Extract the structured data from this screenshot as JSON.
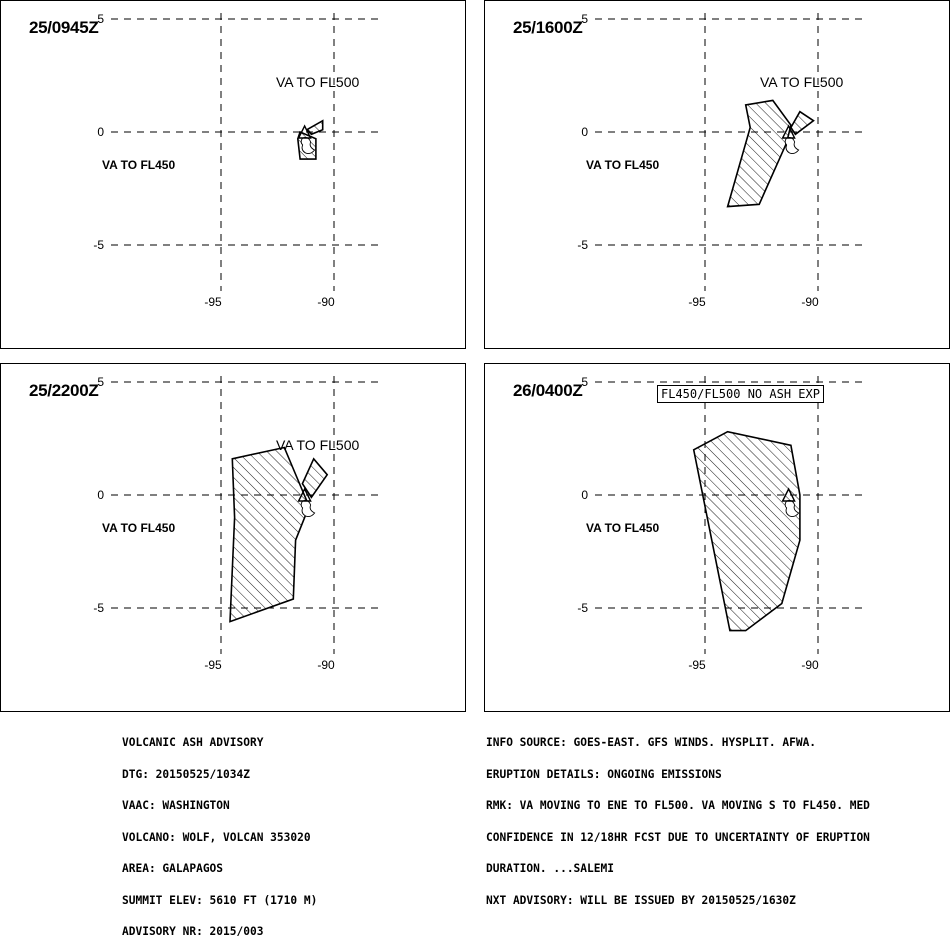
{
  "panels": [
    {
      "time": "25/0945Z",
      "labels": {
        "upper": "VA TO FL500",
        "lower": "VA TO FL450"
      },
      "ticks": {
        "y_top": "5",
        "y_mid": "0",
        "y_bot": "-5",
        "x_left": "-95",
        "x_right": "-90"
      },
      "polygons": {
        "lower": [
          [
            -91.5,
            0.0
          ],
          [
            -90.8,
            -0.3
          ],
          [
            -90.8,
            -1.2
          ],
          [
            -91.5,
            -1.2
          ],
          [
            -91.6,
            -0.3
          ]
        ],
        "upper": [
          [
            -91.2,
            0.1
          ],
          [
            -90.5,
            0.5
          ],
          [
            -90.5,
            0.1
          ],
          [
            -91.0,
            -0.1
          ]
        ]
      }
    },
    {
      "time": "25/1600Z",
      "labels": {
        "upper": "VA TO FL500",
        "lower": "VA TO FL450"
      },
      "ticks": {
        "y_top": "5",
        "y_mid": "0",
        "y_bot": "-5",
        "x_left": "-95",
        "x_right": "-90"
      },
      "polygons": {
        "lower": [
          [
            -93.2,
            1.2
          ],
          [
            -92.0,
            1.4
          ],
          [
            -91.2,
            0.3
          ],
          [
            -91.4,
            -0.5
          ],
          [
            -92.6,
            -3.2
          ],
          [
            -94.0,
            -3.3
          ],
          [
            -93.0,
            0.2
          ]
        ],
        "upper": [
          [
            -91.2,
            0.2
          ],
          [
            -90.8,
            0.9
          ],
          [
            -90.2,
            0.5
          ],
          [
            -91.0,
            -0.1
          ]
        ]
      }
    },
    {
      "time": "25/2200Z",
      "labels": {
        "upper": "VA TO FL500",
        "lower": "VA TO FL450"
      },
      "ticks": {
        "y_top": "5",
        "y_mid": "0",
        "y_bot": "-5",
        "x_left": "-95",
        "x_right": "-90"
      },
      "polygons": {
        "lower": [
          [
            -94.5,
            1.6
          ],
          [
            -92.2,
            2.1
          ],
          [
            -91.4,
            0.2
          ],
          [
            -91.1,
            -0.5
          ],
          [
            -91.7,
            -2.0
          ],
          [
            -91.8,
            -4.6
          ],
          [
            -94.6,
            -5.6
          ],
          [
            -94.4,
            -1.0
          ]
        ],
        "upper": [
          [
            -91.4,
            0.5
          ],
          [
            -90.9,
            1.6
          ],
          [
            -90.3,
            0.9
          ],
          [
            -91.0,
            -0.1
          ]
        ]
      }
    },
    {
      "time": "26/0400Z",
      "labels": {
        "upper": "",
        "lower": "VA TO FL450"
      },
      "box_note": "FL450/FL500 NO ASH EXP",
      "ticks": {
        "y_top": "5",
        "y_mid": "0",
        "y_bot": "-5",
        "x_left": "-95",
        "x_right": "-90"
      },
      "polygons": {
        "lower": [
          [
            -95.5,
            2.0
          ],
          [
            -94.0,
            2.8
          ],
          [
            -91.2,
            2.2
          ],
          [
            -90.8,
            0.0
          ],
          [
            -90.8,
            -2.0
          ],
          [
            -91.6,
            -4.8
          ],
          [
            -93.2,
            -6.0
          ],
          [
            -93.9,
            -6.0
          ],
          [
            -94.5,
            -3.0
          ]
        ],
        "upper": []
      }
    }
  ],
  "volcano": {
    "lon": -91.3,
    "lat": 0.0,
    "name": "WOLF"
  },
  "advisory_left": [
    "VOLCANIC ASH ADVISORY",
    "DTG: 20150525/1034Z",
    "VAAC: WASHINGTON",
    "VOLCANO: WOLF, VOLCAN 353020",
    "AREA: GALAPAGOS",
    "SUMMIT ELEV: 5610 FT (1710 M)",
    "ADVISORY NR: 2015/003"
  ],
  "advisory_right": [
    "INFO SOURCE: GOES-EAST. GFS WINDS. HYSPLIT. AFWA.",
    "ERUPTION DETAILS: ONGOING EMISSIONS",
    "RMK: VA MOVING TO ENE TO FL500. VA MOVING S TO FL450. MED",
    "CONFIDENCE IN 12/18HR FCST DUE TO UNCERTAINTY OF ERUPTION",
    "DURATION. ...SALEMI",
    "NXT ADVISORY: WILL BE ISSUED BY 20150525/1630Z"
  ]
}
